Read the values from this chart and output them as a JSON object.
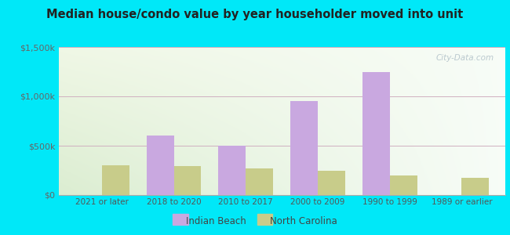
{
  "title": "Median house/condo value by year householder moved into unit",
  "categories": [
    "2021 or later",
    "2018 to 2020",
    "2010 to 2017",
    "2000 to 2009",
    "1990 to 1999",
    "1989 or earlier"
  ],
  "indian_beach": [
    0,
    600000,
    500000,
    950000,
    1250000,
    0
  ],
  "north_carolina": [
    300000,
    290000,
    270000,
    245000,
    195000,
    175000
  ],
  "indian_beach_color": "#c9a8e0",
  "north_carolina_color": "#c8cc8a",
  "ylim": [
    0,
    1500000
  ],
  "yticks": [
    0,
    500000,
    1000000,
    1500000
  ],
  "ytick_labels": [
    "$0",
    "$500k",
    "$1,000k",
    "$1,500k"
  ],
  "bar_width": 0.38,
  "background_outer": "#00e8f8",
  "legend_indian_beach": "Indian Beach",
  "legend_north_carolina": "North Carolina",
  "watermark": "City-Data.com"
}
